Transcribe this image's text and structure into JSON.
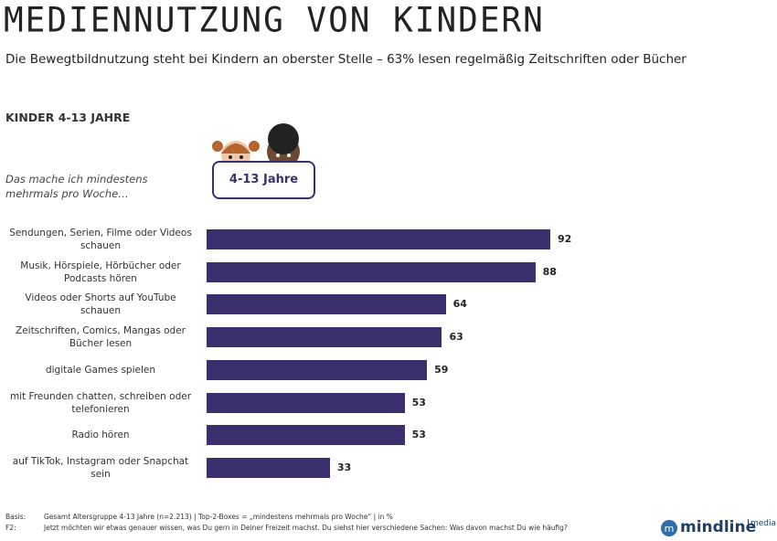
{
  "header": {
    "title": "MEDIENNUTZUNG VON KINDERN",
    "subtitle": "Die Bewegtbildnutzung steht bei Kindern an oberster Stelle – 63% lesen regelmäßig Zeitschriften oder Bücher"
  },
  "chart_data": {
    "type": "bar",
    "title": "KINDER 4-13 JAHRE",
    "subtitle": "Das mache ich mindestens mehrmals pro Woche…",
    "badge": "4-13 Jahre",
    "categories": [
      "Sendungen, Serien, Filme oder Videos schauen",
      "Musik, Hörspiele, Hörbücher oder Podcasts hören",
      "Videos oder Shorts auf YouTube schauen",
      "Zeitschriften, Comics, Mangas oder Bücher lesen",
      "digitale Games spielen",
      "mit Freunden chatten, schreiben oder telefonieren",
      "Radio hören",
      "auf TikTok, Instagram oder Snapchat sein"
    ],
    "values": [
      92,
      88,
      64,
      63,
      59,
      53,
      53,
      33
    ],
    "color": "#3b2f6e"
  },
  "footer": {
    "basis_label": "Basis:",
    "basis": "Gesamt Altersgruppe 4-13 Jahre (n=2.213) | Top-2-Boxes = „mindestens mehrmals pro Woche“ | in %",
    "question_label": "F2:",
    "question": "Jetzt möchten wir etwas genauer wissen, was Du gern in Deiner Freizeit machst. Du siehst hier verschiedene Sachen: Was davon machst Du wie häufig?"
  },
  "logo": {
    "name": "mindline",
    "suffix": "media"
  }
}
